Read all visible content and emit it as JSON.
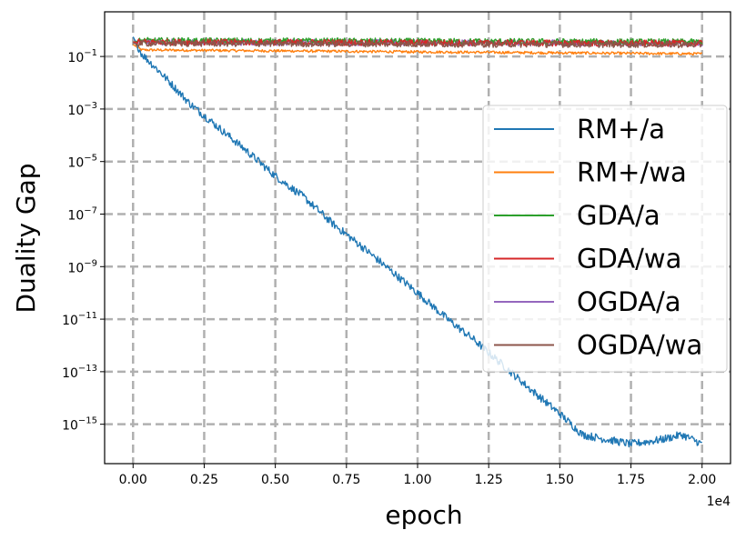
{
  "chart_data": {
    "type": "line",
    "xlabel": "epoch",
    "ylabel": "Duality Gap",
    "x_offset_label": "1e4",
    "xlim": [
      -1000,
      21000
    ],
    "ylim_log10": [
      -16.5,
      0.7
    ],
    "y_scale": "log",
    "grid": true,
    "legend_position": "center-right",
    "x_ticks": [
      {
        "value": 0,
        "label": "0.00"
      },
      {
        "value": 2500,
        "label": "0.25"
      },
      {
        "value": 5000,
        "label": "0.50"
      },
      {
        "value": 7500,
        "label": "0.75"
      },
      {
        "value": 10000,
        "label": "1.00"
      },
      {
        "value": 12500,
        "label": "1.25"
      },
      {
        "value": 15000,
        "label": "1.50"
      },
      {
        "value": 17500,
        "label": "1.75"
      },
      {
        "value": 20000,
        "label": "2.00"
      }
    ],
    "y_ticks": [
      {
        "exp": -1,
        "base": "10",
        "sup": "−1"
      },
      {
        "exp": -3,
        "base": "10",
        "sup": "−3"
      },
      {
        "exp": -5,
        "base": "10",
        "sup": "−5"
      },
      {
        "exp": -7,
        "base": "10",
        "sup": "−7"
      },
      {
        "exp": -9,
        "base": "10",
        "sup": "−9"
      },
      {
        "exp": -11,
        "base": "10",
        "sup": "−11"
      },
      {
        "exp": -13,
        "base": "10",
        "sup": "−13"
      },
      {
        "exp": -15,
        "base": "10",
        "sup": "−15"
      }
    ],
    "series": [
      {
        "name": "RM+/a",
        "color": "#1f77b4",
        "noise": 0.15,
        "points": [
          [
            0,
            -0.25
          ],
          [
            300,
            -0.9
          ],
          [
            1000,
            -1.65
          ],
          [
            2000,
            -2.8
          ],
          [
            3000,
            -3.7
          ],
          [
            4000,
            -4.6
          ],
          [
            5000,
            -5.55
          ],
          [
            6000,
            -6.35
          ],
          [
            7000,
            -7.35
          ],
          [
            8000,
            -8.2
          ],
          [
            9000,
            -9.1
          ],
          [
            10000,
            -10.0
          ],
          [
            11000,
            -10.95
          ],
          [
            12000,
            -11.8
          ],
          [
            13000,
            -12.75
          ],
          [
            14000,
            -13.7
          ],
          [
            15000,
            -14.6
          ],
          [
            15800,
            -15.4
          ],
          [
            16500,
            -15.55
          ],
          [
            17500,
            -15.75
          ],
          [
            18500,
            -15.6
          ],
          [
            19300,
            -15.4
          ],
          [
            20000,
            -15.75
          ]
        ]
      },
      {
        "name": "RM+/wa",
        "color": "#ff7f0e",
        "noise": 0.05,
        "points": [
          [
            0,
            -0.55
          ],
          [
            300,
            -0.75
          ],
          [
            20000,
            -0.9
          ]
        ]
      },
      {
        "name": "GDA/a",
        "color": "#2ca02c",
        "noise": 0.12,
        "points": [
          [
            0,
            -0.45
          ],
          [
            300,
            -0.4
          ],
          [
            20000,
            -0.45
          ]
        ]
      },
      {
        "name": "GDA/wa",
        "color": "#d62728",
        "noise": 0.12,
        "points": [
          [
            0,
            -0.45
          ],
          [
            300,
            -0.45
          ],
          [
            20000,
            -0.5
          ]
        ]
      },
      {
        "name": "OGDA/a",
        "color": "#9467bd",
        "noise": 0.12,
        "points": [
          [
            0,
            -0.45
          ],
          [
            300,
            -0.45
          ],
          [
            20000,
            -0.5
          ]
        ]
      },
      {
        "name": "OGDA/wa",
        "color": "#8c564b",
        "noise": 0.12,
        "points": [
          [
            0,
            -0.5
          ],
          [
            300,
            -0.5
          ],
          [
            20000,
            -0.55
          ]
        ]
      }
    ]
  }
}
